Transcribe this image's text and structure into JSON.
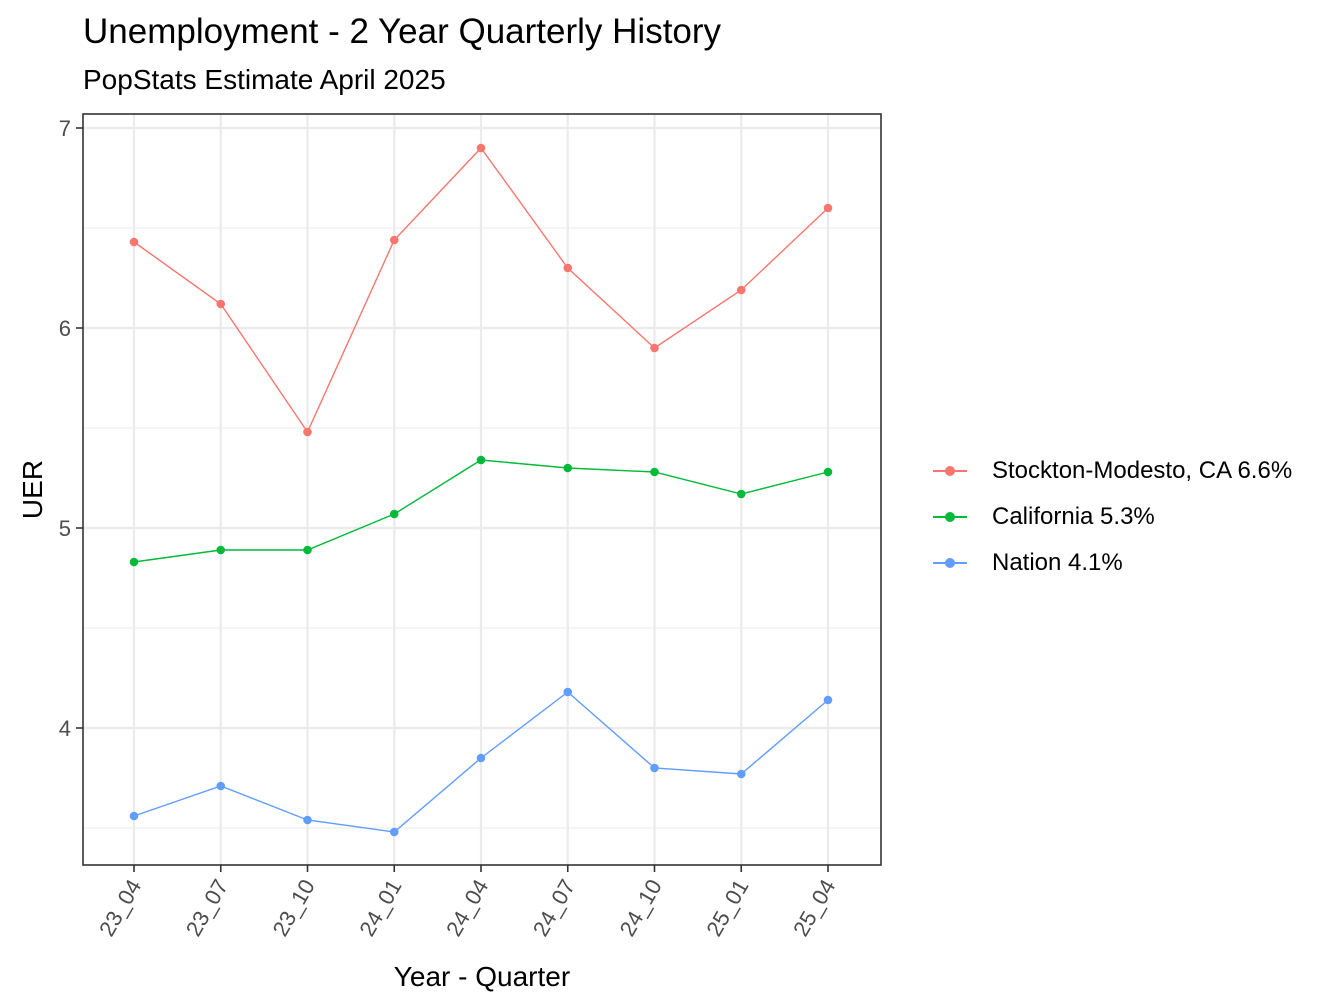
{
  "title": "Unemployment - 2 Year Quarterly History",
  "subtitle": "PopStats Estimate April 2025",
  "chart_data": {
    "type": "line",
    "title": "Unemployment - 2 Year Quarterly History",
    "subtitle": "PopStats Estimate April 2025",
    "xlabel": "Year - Quarter",
    "ylabel": "UER",
    "categories": [
      "23_04",
      "23_07",
      "23_10",
      "24_01",
      "24_04",
      "24_07",
      "24_10",
      "25_01",
      "25_04"
    ],
    "yticks": [
      4,
      5,
      6,
      7
    ],
    "ylim": [
      3.31,
      7.07
    ],
    "grid": true,
    "legend_position": "right",
    "series": [
      {
        "name": "Stockton-Modesto, CA 6.6%",
        "color": "#F8766D",
        "values": [
          6.43,
          6.12,
          5.48,
          6.44,
          6.9,
          6.3,
          5.9,
          6.19,
          6.6
        ]
      },
      {
        "name": "California 5.3%",
        "color": "#00BA38",
        "values": [
          4.83,
          4.89,
          4.89,
          5.07,
          5.34,
          5.3,
          5.28,
          5.17,
          5.28
        ]
      },
      {
        "name": "Nation 4.1%",
        "color": "#619CFF",
        "values": [
          3.56,
          3.71,
          3.54,
          3.48,
          3.85,
          4.18,
          3.8,
          3.77,
          4.14
        ]
      }
    ]
  }
}
